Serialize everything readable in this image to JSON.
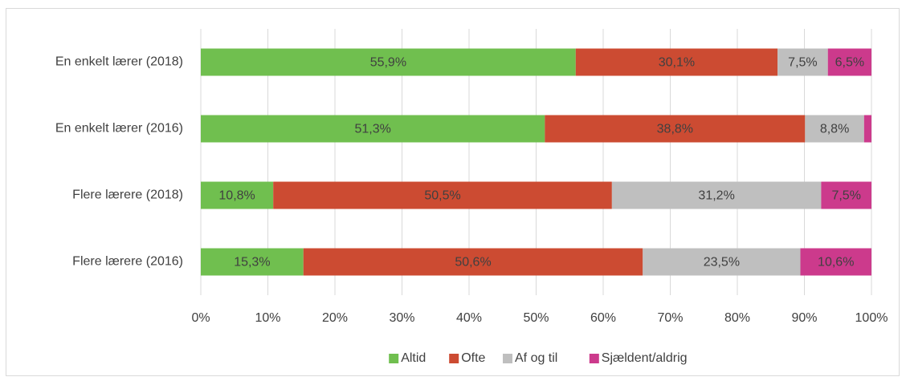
{
  "chart_data": {
    "type": "stacked-bar-horizontal",
    "categories": [
      "En enkelt lærer (2018)",
      "En enkelt lærer (2016)",
      "Flere lærere (2018)",
      "Flere lærere (2016)"
    ],
    "series": [
      {
        "name": "Altid",
        "color": "#70bf4f",
        "values": [
          55.9,
          51.3,
          10.8,
          15.3
        ],
        "value_labels": [
          "55,9%",
          "51,3%",
          "10,8%",
          "15,3%"
        ]
      },
      {
        "name": "Ofte",
        "color": "#cc4b32",
        "values": [
          30.1,
          38.8,
          50.5,
          50.6
        ],
        "value_labels": [
          "30,1%",
          "38,8%",
          "50,5%",
          "50,6%"
        ]
      },
      {
        "name": "Af og til",
        "color": "#bfbfbf",
        "values": [
          7.5,
          8.8,
          31.2,
          23.5
        ],
        "value_labels": [
          "7,5%",
          "8,8%",
          "31,2%",
          "23,5%"
        ]
      },
      {
        "name": "Sjældent/aldrig",
        "color": "#cc3a8c",
        "values": [
          6.5,
          1.1,
          7.5,
          10.6
        ],
        "value_labels": [
          "6,5%",
          null,
          "7,5%",
          "10,6%"
        ]
      }
    ],
    "xlim": [
      0,
      100
    ],
    "xticks": [
      {
        "value": 0,
        "label": "0%"
      },
      {
        "value": 10,
        "label": "10%"
      },
      {
        "value": 20,
        "label": "20%"
      },
      {
        "value": 30,
        "label": "30%"
      },
      {
        "value": 40,
        "label": "40%"
      },
      {
        "value": 50,
        "label": "50%"
      },
      {
        "value": 60,
        "label": "60%"
      },
      {
        "value": 70,
        "label": "70%"
      },
      {
        "value": 80,
        "label": "80%"
      },
      {
        "value": 90,
        "label": "90%"
      },
      {
        "value": 100,
        "label": "100%"
      }
    ],
    "grid": true,
    "legend": "bottom"
  }
}
